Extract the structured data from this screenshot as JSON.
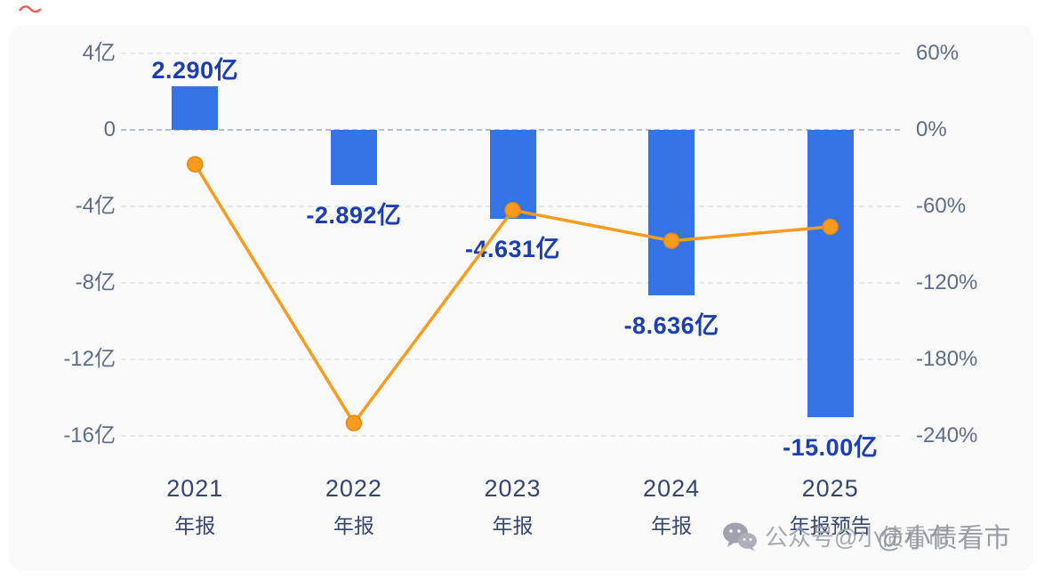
{
  "watermark": {
    "icon": "wechat-icon",
    "text": "公众号@小债看市",
    "text2": "@小债看市"
  },
  "chart_data": {
    "type": "bar",
    "title": "",
    "legend": "none",
    "grid": "dashed horizontal lines",
    "categories": [
      "2021 年报",
      "2022 年报",
      "2023 年报",
      "2024 年报",
      "2025 年报预告"
    ],
    "category_lines": [
      [
        "2021",
        "年报"
      ],
      [
        "2022",
        "年报"
      ],
      [
        "2023",
        "年报"
      ],
      [
        "2024",
        "年报"
      ],
      [
        "2025",
        "年报预告"
      ]
    ],
    "series": [
      {
        "name": "bar-values",
        "type": "bar",
        "unit": "亿",
        "axis": "left",
        "values": [
          2.29,
          -2.892,
          -4.631,
          -8.636,
          -15.0
        ],
        "labels": [
          "2.290亿",
          "-2.892亿",
          "-4.631亿",
          "-8.636亿",
          "-15.00亿"
        ],
        "color": "#3474e6",
        "label_color": "#1b3eb3"
      },
      {
        "name": "line-percent",
        "type": "line",
        "unit": "%",
        "axis": "right",
        "values": [
          -27,
          -230,
          -63,
          -87,
          -76
        ],
        "color": "#f79c1e",
        "dot_stroke": "#e5890f"
      }
    ],
    "left_axis": {
      "tick_labels": [
        "4亿",
        "0",
        "-4亿",
        "-8亿",
        "-12亿",
        "-16亿"
      ],
      "tick_values": [
        4,
        0,
        -4,
        -8,
        -12,
        -16
      ],
      "range": [
        -17.5,
        5.5
      ]
    },
    "right_axis": {
      "tick_labels": [
        "60%",
        "0%",
        "-60%",
        "-120%",
        "-180%",
        "-240%"
      ],
      "tick_values": [
        60,
        0,
        -60,
        -120,
        -180,
        -240
      ],
      "range": [
        -262,
        82
      ]
    }
  }
}
